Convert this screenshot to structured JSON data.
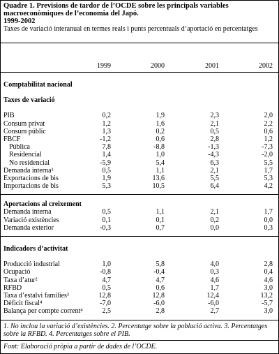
{
  "header": {
    "title": "Quadre 1. Previsions de tardor de l’OCDE sobre les principals variables macroeconòmiques de l’economia del Japó.",
    "period": "1999-2002",
    "subtitle": "Taxes de variació interanual en termes reals i punts percentuals d’aportació en percentatges"
  },
  "table": {
    "columns": [
      "1999",
      "2000",
      "2001",
      "2002"
    ],
    "blocks": [
      {
        "heading": "Comptabilitat nacional",
        "rows": []
      },
      {
        "heading": "Taxes de variació",
        "rows": [
          {
            "label": "PIB",
            "values": [
              "0,2",
              "1,9",
              "2,3",
              "2,0"
            ]
          },
          {
            "label": "Consum privat",
            "values": [
              "1,2",
              "1,6",
              "2,1",
              "2,2"
            ]
          },
          {
            "label": "Consum públic",
            "values": [
              "1,3",
              "0,2",
              "0,5",
              "0,6"
            ]
          },
          {
            "label": "FBCF",
            "values": [
              "-1,2",
              "0,6",
              "2,8",
              "1,2"
            ]
          },
          {
            "label": "Pública",
            "values": [
              "7,8",
              "-8,8",
              "-1,3",
              "-7,3"
            ],
            "level": 1
          },
          {
            "label": "Residencial",
            "values": [
              "1,4",
              "1,0",
              "-4,3",
              "-2,0"
            ],
            "level": 1
          },
          {
            "label": "No residencial",
            "values": [
              "-5,9",
              "5,4",
              "6,3",
              "5,5"
            ],
            "level": 1
          },
          {
            "label": "Demanda interna¹",
            "values": [
              "0,5",
              "1,1",
              "2,1",
              "1,7"
            ]
          },
          {
            "label": "Exportacions de bis",
            "values": [
              "1,9",
              "13,6",
              "5,5",
              "5,3"
            ]
          },
          {
            "label": "Importacions de bis",
            "values": [
              "5,3",
              "10,5",
              "6,4",
              "4,2"
            ]
          }
        ]
      },
      {
        "heading": "Aportacions al creixement",
        "rows": [
          {
            "label": "Demanda interna",
            "values": [
              "0,5",
              "1,1",
              "2,1",
              "1,7"
            ]
          },
          {
            "label": "Variació existències",
            "values": [
              "0,1",
              "0,1",
              "0,2",
              "0,0"
            ]
          },
          {
            "label": "Demanda exterior",
            "values": [
              "-0,3",
              "0,7",
              "0,0",
              "0,3"
            ]
          }
        ]
      },
      {
        "heading": "Indicadors d’activitat",
        "rows": [
          {
            "label": "Producció industrial",
            "values": [
              "1,0",
              "5,8",
              "4,0",
              "2,8"
            ]
          },
          {
            "label": "Ocupació",
            "values": [
              "-0,8",
              "-0,4",
              "0,3",
              "0,4"
            ]
          },
          {
            "label": "Taxa d’atur²",
            "values": [
              "4,7",
              "4,7",
              "4,6",
              "4,6"
            ]
          },
          {
            "label": "RFBD",
            "values": [
              "0,5",
              "0,6",
              "1,7",
              "3,0"
            ]
          },
          {
            "label": "Taxa d’estalvi famílies³",
            "values": [
              "12,8",
              "12,8",
              "12,4",
              "13,2"
            ]
          },
          {
            "label": "Dèficit fiscal⁴",
            "values": [
              "-7,0",
              "-6,0",
              "-6,0",
              "-5,7"
            ]
          },
          {
            "label": "Balança per compte corrent⁴",
            "values": [
              "2,5",
              "2,8",
              "2,7",
              "3,0"
            ]
          }
        ]
      }
    ]
  },
  "notes": "1. No inclou la variació d’existències. 2. Percentatge sobre la població activa. 3. Percentatges sobre la RFBD. 4. Percentatges sobre el PIB.",
  "source": "Font: Elaboració pròpia a partir de dades de l’OCDE."
}
